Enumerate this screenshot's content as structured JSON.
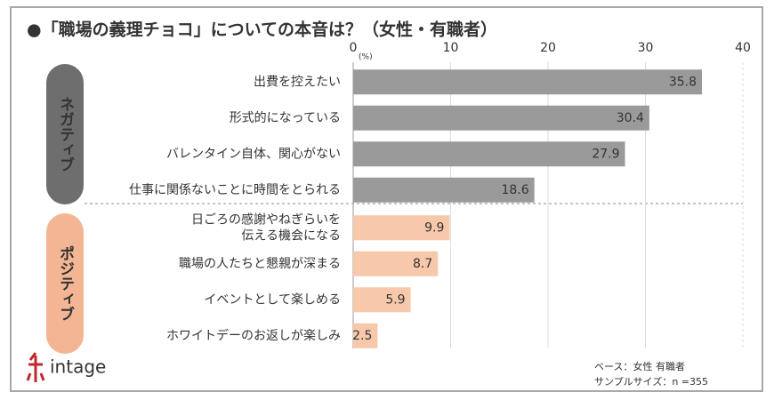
{
  "chart_data": {
    "type": "hbar",
    "title": "●「職場の義理チョコ」についての本音は？（女性・有職者）",
    "unit": "(%)",
    "xlim": [
      0,
      40
    ],
    "xticks": [
      0,
      10,
      20,
      30,
      40
    ],
    "groups": [
      {
        "label": "ネガティブ",
        "color": "#9a9a9a",
        "pill_color": "#6e6e6e",
        "value_color": "#ffffff",
        "categories": [
          "出費を控えたい",
          "形式的になっている",
          "バレンタイン自体、関心がない",
          "仕事に関係ないことに時間をとられる"
        ],
        "values": [
          35.8,
          30.4,
          27.9,
          18.6
        ]
      },
      {
        "label": "ポジティブ",
        "color": "#f8c8aa",
        "pill_color": "#f4b594",
        "value_color": "#333333",
        "categories": [
          "日ごろの感謝やねぎらいを\n伝える機会になる",
          "職場の人たちと懇親が深まる",
          "イベントとして楽しめる",
          "ホワイトデーのお返しが楽しみ"
        ],
        "values": [
          9.9,
          8.7,
          5.9,
          2.5
        ]
      }
    ],
    "logo": "intage",
    "notes": [
      "ベース：女性 有職者",
      "サンプルサイズ：n =355"
    ]
  }
}
